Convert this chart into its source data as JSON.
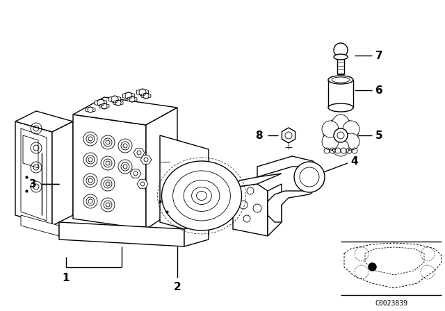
{
  "background_color": "#ffffff",
  "line_color": "#000000",
  "figure_width": 6.4,
  "figure_height": 4.48,
  "dpi": 100,
  "diagram_code": "C0023839"
}
